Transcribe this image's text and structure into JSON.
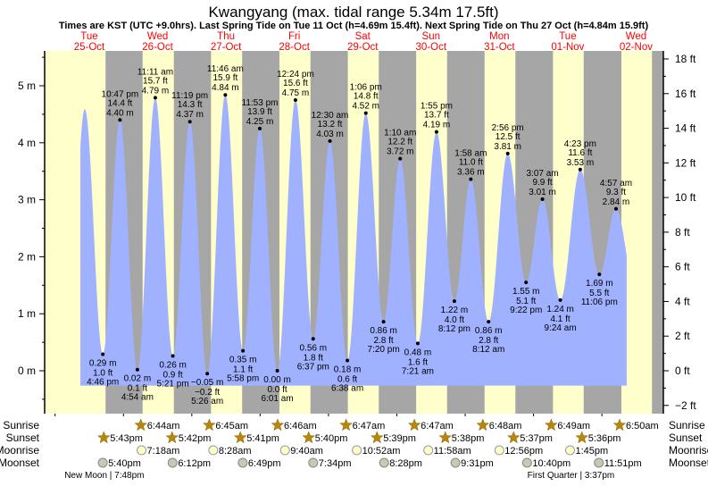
{
  "chart_data": {
    "type": "area",
    "title": "Kwangyang (max. tidal range 5.34m 17.5ft)",
    "subtitle": "Times are KST (UTC +9.0hrs). Last Spring Tide on Tue 11 Oct (h=4.69m 15.4ft). Next Spring Tide on Thu 27 Oct (h=4.84m 15.9ft)",
    "time_unit": "hours since 25-Oct 00:00 KST",
    "x_range_hours": [
      -3.67,
      213.5
    ],
    "days": [
      {
        "dow": "Tue",
        "date": "25-Oct",
        "noon": 12
      },
      {
        "dow": "Wed",
        "date": "26-Oct",
        "noon": 36
      },
      {
        "dow": "Thu",
        "date": "27-Oct",
        "noon": 60
      },
      {
        "dow": "Fri",
        "date": "28-Oct",
        "noon": 84
      },
      {
        "dow": "Sat",
        "date": "29-Oct",
        "noon": 108
      },
      {
        "dow": "Sun",
        "date": "30-Oct",
        "noon": 132
      },
      {
        "dow": "Mon",
        "date": "31-Oct",
        "noon": 156
      },
      {
        "dow": "Tue",
        "date": "01-Nov",
        "noon": 180
      },
      {
        "dow": "Wed",
        "date": "02-Nov",
        "noon": 204
      }
    ],
    "y_left": {
      "unit": "m",
      "range": [
        -0.65,
        5.55
      ],
      "ticks": [
        {
          "v": 0,
          "label": "0 m"
        },
        {
          "v": 1,
          "label": "1 m"
        },
        {
          "v": 2,
          "label": "2 m"
        },
        {
          "v": 3,
          "label": "3 m"
        },
        {
          "v": 4,
          "label": "4 m"
        },
        {
          "v": 5,
          "label": "5 m"
        }
      ]
    },
    "y_right": {
      "unit": "ft",
      "ticks": [
        {
          "v": -2,
          "label": "−2 ft"
        },
        {
          "v": 0,
          "label": "0 ft"
        },
        {
          "v": 2,
          "label": "2 ft"
        },
        {
          "v": 4,
          "label": "4 ft"
        },
        {
          "v": 6,
          "label": "6 ft"
        },
        {
          "v": 8,
          "label": "8 ft"
        },
        {
          "v": 10,
          "label": "10 ft"
        },
        {
          "v": 12,
          "label": "12 ft"
        },
        {
          "v": 14,
          "label": "14 ft"
        },
        {
          "v": 16,
          "label": "16 ft"
        },
        {
          "v": 18,
          "label": "18 ft"
        }
      ]
    },
    "curve_range_hours": [
      8.87,
      200.7
    ],
    "curve_base_m": -0.26,
    "tides": [
      {
        "t": 4.2,
        "m": 0.1,
        "type": "low"
      },
      {
        "t": 10.43,
        "m": 4.59,
        "type": "high"
      },
      {
        "t": 16.77,
        "m": 0.29,
        "type": "low",
        "time": "4:46 pm",
        "ft": "1.0 ft",
        "mtxt": "0.29 m"
      },
      {
        "t": 22.78,
        "m": 4.4,
        "type": "high",
        "time": "10:47 pm",
        "ft": "14.4 ft",
        "mtxt": "4.40 m"
      },
      {
        "t": 28.9,
        "m": 0.02,
        "type": "low",
        "time": "4:54 am",
        "ft": "0.1 ft",
        "mtxt": "0.02 m"
      },
      {
        "t": 35.18,
        "m": 4.79,
        "type": "high",
        "time": "11:11 am",
        "ft": "15.7 ft",
        "mtxt": "4.79 m"
      },
      {
        "t": 41.35,
        "m": 0.26,
        "type": "low",
        "time": "5:21 pm",
        "ft": "0.9 ft",
        "mtxt": "0.26 m"
      },
      {
        "t": 47.32,
        "m": 4.37,
        "type": "high",
        "time": "11:19 pm",
        "ft": "14.3 ft",
        "mtxt": "4.37 m"
      },
      {
        "t": 53.43,
        "m": -0.05,
        "type": "low",
        "time": "5:26 am",
        "ft": "−0.2 ft",
        "mtxt": "−0.05 m"
      },
      {
        "t": 59.77,
        "m": 4.84,
        "type": "high",
        "time": "11:46 am",
        "ft": "15.9 ft",
        "mtxt": "4.84 m"
      },
      {
        "t": 65.97,
        "m": 0.35,
        "type": "low",
        "time": "5:58 pm",
        "ft": "1.1 ft",
        "mtxt": "0.35 m"
      },
      {
        "t": 71.88,
        "m": 4.25,
        "type": "high",
        "time": "11:53 pm",
        "ft": "13.9 ft",
        "mtxt": "4.25 m"
      },
      {
        "t": 78.02,
        "m": 0.0,
        "type": "low",
        "time": "6:01 am",
        "ft": "0.0 ft",
        "mtxt": "0.00 m"
      },
      {
        "t": 84.4,
        "m": 4.75,
        "type": "high",
        "time": "12:24 pm",
        "ft": "15.6 ft",
        "mtxt": "4.75 m"
      },
      {
        "t": 90.62,
        "m": 0.56,
        "type": "low",
        "time": "6:37 pm",
        "ft": "1.8 ft",
        "mtxt": "0.56 m"
      },
      {
        "t": 96.5,
        "m": 4.03,
        "type": "high",
        "time": "12:30 am",
        "ft": "13.2 ft",
        "mtxt": "4.03 m"
      },
      {
        "t": 102.63,
        "m": 0.18,
        "type": "low",
        "time": "6:38 am",
        "ft": "0.6 ft",
        "mtxt": "0.18 m"
      },
      {
        "t": 109.1,
        "m": 4.52,
        "type": "high",
        "time": "1:06 pm",
        "ft": "14.8 ft",
        "mtxt": "4.52 m"
      },
      {
        "t": 115.33,
        "m": 0.86,
        "type": "low",
        "time": "7:20 pm",
        "ft": "2.8 ft",
        "mtxt": "0.86 m"
      },
      {
        "t": 121.17,
        "m": 3.72,
        "type": "high",
        "time": "1:10 am",
        "ft": "12.2 ft",
        "mtxt": "3.72 m"
      },
      {
        "t": 127.35,
        "m": 0.48,
        "type": "low",
        "time": "7:21 am",
        "ft": "1.6 ft",
        "mtxt": "0.48 m"
      },
      {
        "t": 133.92,
        "m": 4.19,
        "type": "high",
        "time": "1:55 pm",
        "ft": "13.7 ft",
        "mtxt": "4.19 m"
      },
      {
        "t": 140.2,
        "m": 1.22,
        "type": "low",
        "time": "8:12 pm",
        "ft": "4.0 ft",
        "mtxt": "1.22 m"
      },
      {
        "t": 145.97,
        "m": 3.36,
        "type": "high",
        "time": "1:58 am",
        "ft": "11.0 ft",
        "mtxt": "3.36 m"
      },
      {
        "t": 152.2,
        "m": 0.86,
        "type": "low",
        "time": "8:12 am",
        "ft": "2.8 ft",
        "mtxt": "0.86 m"
      },
      {
        "t": 158.93,
        "m": 3.81,
        "type": "high",
        "time": "2:56 pm",
        "ft": "12.5 ft",
        "mtxt": "3.81 m"
      },
      {
        "t": 165.37,
        "m": 1.55,
        "type": "low",
        "time": "9:22 pm",
        "ft": "5.1 ft",
        "mtxt": "1.55 m"
      },
      {
        "t": 171.12,
        "m": 3.01,
        "type": "high",
        "time": "3:07 am",
        "ft": "9.9 ft",
        "mtxt": "3.01 m"
      },
      {
        "t": 177.4,
        "m": 1.24,
        "type": "low",
        "time": "9:24 am",
        "ft": "4.1 ft",
        "mtxt": "1.24 m"
      },
      {
        "t": 184.38,
        "m": 3.53,
        "type": "high",
        "time": "4:23 pm",
        "ft": "11.6 ft",
        "mtxt": "3.53 m"
      },
      {
        "t": 191.1,
        "m": 1.69,
        "type": "low",
        "time": "11:06 pm",
        "ft": "5.5 ft",
        "mtxt": "1.69 m"
      },
      {
        "t": 196.95,
        "m": 2.84,
        "type": "high",
        "time": "4:57 am",
        "ft": "9.3 ft",
        "mtxt": "2.84 m"
      },
      {
        "t": 203.5,
        "m": 1.5,
        "type": "low"
      }
    ],
    "colors": {
      "day": "#ffffcc",
      "night": "#a6a6a6",
      "water": "#a0b1ff",
      "sun": "#b8860b",
      "moonrise": "#ffffcc",
      "moonset": "#c8c8b4",
      "days": "#ff0000"
    }
  },
  "rows": {
    "sunrise_label": "Sunrise",
    "sunset_label": "Sunset",
    "moonrise_label": "Moonrise",
    "moonset_label": "Moonset",
    "sunrise": [
      {
        "t": 30.73,
        "text": "6:44am"
      },
      {
        "t": 54.75,
        "text": "6:45am"
      },
      {
        "t": 78.77,
        "text": "6:46am"
      },
      {
        "t": 102.78,
        "text": "6:47am"
      },
      {
        "t": 126.78,
        "text": "6:47am"
      },
      {
        "t": 150.8,
        "text": "6:48am"
      },
      {
        "t": 174.82,
        "text": "6:49am"
      },
      {
        "t": 198.83,
        "text": "6:50am"
      }
    ],
    "sunset": [
      {
        "t": 17.72,
        "text": "5:43pm"
      },
      {
        "t": 41.7,
        "text": "5:42pm"
      },
      {
        "t": 65.68,
        "text": "5:41pm"
      },
      {
        "t": 89.67,
        "text": "5:40pm"
      },
      {
        "t": 113.65,
        "text": "5:39pm"
      },
      {
        "t": 137.63,
        "text": "5:38pm"
      },
      {
        "t": 161.62,
        "text": "5:37pm"
      },
      {
        "t": 185.6,
        "text": "5:36pm"
      }
    ],
    "final_night_start": 209.58,
    "moonrise": [
      {
        "t": 31.3,
        "text": "7:18am"
      },
      {
        "t": 56.47,
        "text": "8:28am"
      },
      {
        "t": 81.67,
        "text": "9:40am"
      },
      {
        "t": 106.87,
        "text": "10:52am"
      },
      {
        "t": 131.97,
        "text": "11:58am"
      },
      {
        "t": 156.93,
        "text": "12:56pm"
      },
      {
        "t": 181.75,
        "text": "1:45pm"
      }
    ],
    "moonset": [
      {
        "t": 17.67,
        "text": "5:40pm"
      },
      {
        "t": 42.2,
        "text": "6:12pm"
      },
      {
        "t": 66.82,
        "text": "6:49pm"
      },
      {
        "t": 91.57,
        "text": "7:34pm"
      },
      {
        "t": 116.47,
        "text": "8:28pm"
      },
      {
        "t": 141.52,
        "text": "9:31pm"
      },
      {
        "t": 166.67,
        "text": "10:40pm"
      },
      {
        "t": 191.85,
        "text": "11:51pm"
      }
    ],
    "phases": [
      {
        "t": 19.8,
        "text": "New Moon | 7:48pm"
      },
      {
        "t": 183.62,
        "text": "First Quarter | 3:37pm"
      }
    ]
  }
}
